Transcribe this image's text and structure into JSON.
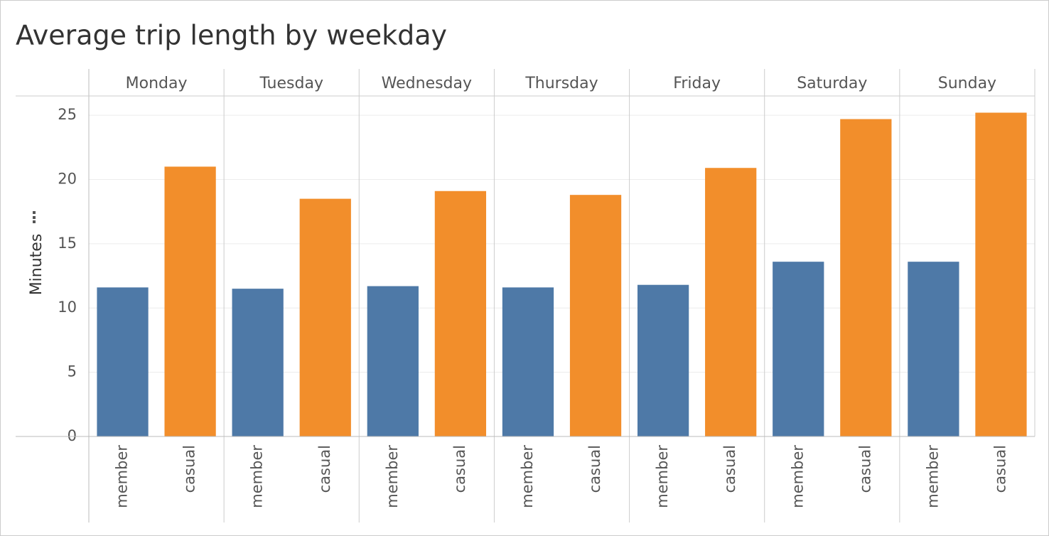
{
  "chart_data": {
    "type": "bar",
    "title": "Average trip length by weekday",
    "y_label": "Minutes",
    "categories": [
      "Monday",
      "Tuesday",
      "Wednesday",
      "Thursday",
      "Friday",
      "Saturday",
      "Sunday"
    ],
    "series": [
      {
        "name": "member",
        "color": "#4e79a7",
        "values": [
          11.6,
          11.5,
          11.7,
          11.6,
          11.8,
          13.6,
          13.6
        ]
      },
      {
        "name": "casual",
        "color": "#f28e2b",
        "values": [
          21.0,
          18.5,
          19.1,
          18.8,
          20.9,
          24.7,
          25.2
        ]
      }
    ],
    "ylim": [
      0,
      26.5
    ],
    "yticks": [
      0,
      5,
      10,
      15,
      20,
      25
    ],
    "grid": true
  }
}
